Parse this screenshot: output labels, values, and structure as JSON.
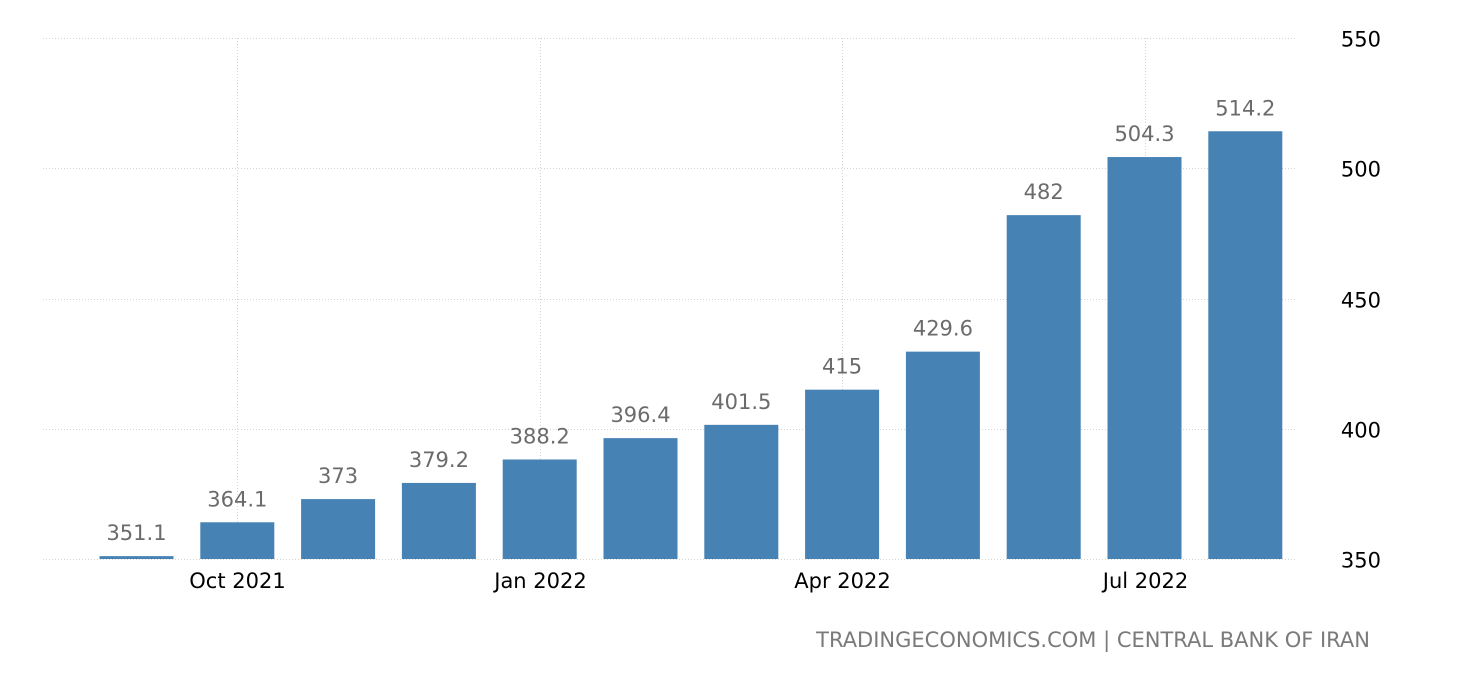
{
  "chart_data": {
    "type": "bar",
    "categories": [
      "Sep 2021",
      "Oct 2021",
      "Nov 2021",
      "Dec 2021",
      "Jan 2022",
      "Feb 2022",
      "Mar 2022",
      "Apr 2022",
      "May 2022",
      "Jun 2022",
      "Jul 2022",
      "Aug 2022"
    ],
    "values": [
      351.1,
      364.1,
      373,
      379.2,
      388.2,
      396.4,
      401.5,
      415,
      429.6,
      482,
      504.3,
      514.2
    ],
    "value_labels": [
      "351.1",
      "364.1",
      "373",
      "379.2",
      "388.2",
      "396.4",
      "401.5",
      "415",
      "429.6",
      "482",
      "504.3",
      "514.2"
    ],
    "ylim": [
      350,
      550
    ],
    "y_ticks": [
      350,
      400,
      450,
      500,
      550
    ],
    "x_tick_labels": [
      {
        "category": "Oct 2021",
        "label": "Oct 2021"
      },
      {
        "category": "Jan 2022",
        "label": "Jan 2022"
      },
      {
        "category": "Apr 2022",
        "label": "Apr 2022"
      },
      {
        "category": "Jul 2022",
        "label": "Jul 2022"
      }
    ],
    "y_axis_side": "right",
    "grid": true,
    "bar_color": "#4682b4"
  },
  "source_text": "TRADINGECONOMICS.COM | CENTRAL BANK OF IRAN"
}
